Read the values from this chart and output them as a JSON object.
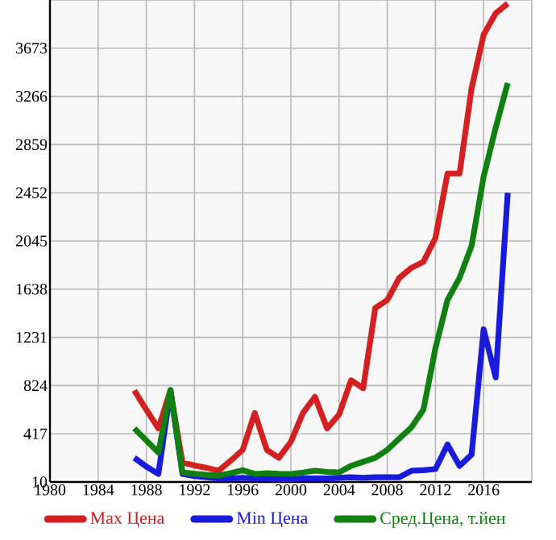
{
  "chart_data": {
    "type": "line",
    "x": [
      1987,
      1988,
      1989,
      1990,
      1991,
      1992,
      1993,
      1994,
      1995,
      1996,
      1997,
      1998,
      1999,
      2000,
      2001,
      2002,
      2003,
      2004,
      2005,
      2006,
      2007,
      2008,
      2009,
      2010,
      2011,
      2012,
      2013,
      2014,
      2015,
      2016,
      2017,
      2018
    ],
    "series": [
      {
        "name": "Max Цена",
        "color": "#d42020",
        "values": [
          783,
          620,
          462,
          783,
          173,
          150,
          130,
          105,
          190,
          281,
          593,
          281,
          214,
          349,
          593,
          729,
          462,
          580,
          869,
          801,
          1479,
          1547,
          1733,
          1818,
          1869,
          2072,
          2615,
          2615,
          3334,
          3787,
          3967,
          4050
        ]
      },
      {
        "name": "Min Цена",
        "color": "#1a1adc",
        "values": [
          214,
          140,
          78,
          783,
          78,
          60,
          50,
          40,
          40,
          45,
          40,
          40,
          35,
          35,
          40,
          40,
          40,
          45,
          50,
          45,
          50,
          50,
          50,
          105,
          110,
          119,
          326,
          146,
          241,
          1299,
          892,
          2452
        ]
      },
      {
        "name": "Сред.Цена, т.йен",
        "color": "#108010",
        "values": [
          462,
          360,
          258,
          787,
          91,
          80,
          70,
          64,
          85,
          109,
          78,
          85,
          80,
          78,
          90,
          105,
          95,
          91,
          146,
          180,
          214,
          281,
          376,
          471,
          620,
          1140,
          1547,
          1733,
          2004,
          2588,
          3000,
          3379
        ]
      }
    ],
    "xlim": [
      1980,
      2020
    ],
    "ylim": [
      10,
      4080
    ],
    "xticks": [
      1980,
      1984,
      1988,
      1992,
      1996,
      2000,
      2004,
      2008,
      2012,
      2016,
      {
        "value": 2020,
        "label": null
      }
    ],
    "yticks": [
      10,
      417,
      824,
      1231,
      1638,
      2045,
      2452,
      2859,
      3266,
      3673,
      {
        "value": 4080,
        "label": null
      }
    ],
    "grid": true,
    "legend": "bottom",
    "marker": "none",
    "line_style": "solid"
  }
}
